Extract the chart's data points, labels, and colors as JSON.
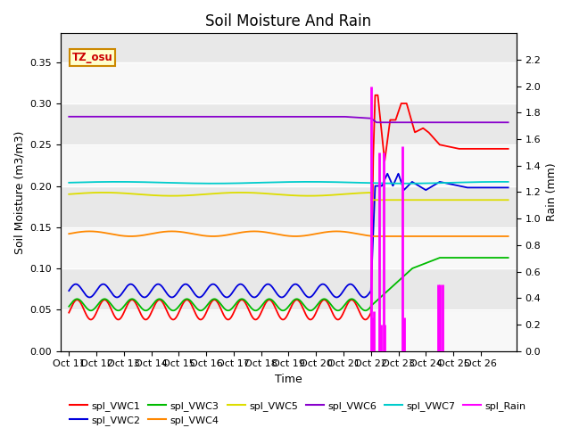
{
  "title": "Soil Moisture And Rain",
  "xlabel": "Time",
  "ylabel_left": "Soil Moisture (m3/m3)",
  "ylabel_right": "Rain (mm)",
  "annotation": "TZ_osu",
  "ylim_left": [
    0.0,
    0.385
  ],
  "ylim_right": [
    0.0,
    2.4
  ],
  "yticks_left": [
    0.0,
    0.05,
    0.1,
    0.15,
    0.2,
    0.25,
    0.3,
    0.35
  ],
  "yticks_right": [
    0.0,
    0.2,
    0.4,
    0.6,
    0.8,
    1.0,
    1.2,
    1.4,
    1.6,
    1.8,
    2.0,
    2.2
  ],
  "xtick_labels": [
    "Oct 11",
    "Oct 12",
    "Oct 13",
    "Oct 14",
    "Oct 15",
    "Oct 16",
    "Oct 17",
    "Oct 18",
    "Oct 19",
    "Oct 20",
    "Oct 21",
    "Oct 22",
    "Oct 23",
    "Oct 24",
    "Oct 25",
    "Oct 26"
  ],
  "legend_colors_vwc": [
    "#ff0000",
    "#0000dd",
    "#00bb00",
    "#ff8800",
    "#dddd00",
    "#8800cc",
    "#00cccc"
  ],
  "legend_color_rain": "#ff00ff",
  "bg_gray": "#e8e8e8",
  "bg_white": "#f8f8f8",
  "title_fontsize": 12,
  "axis_label_fontsize": 9,
  "tick_fontsize": 8,
  "legend_fontsize": 8
}
